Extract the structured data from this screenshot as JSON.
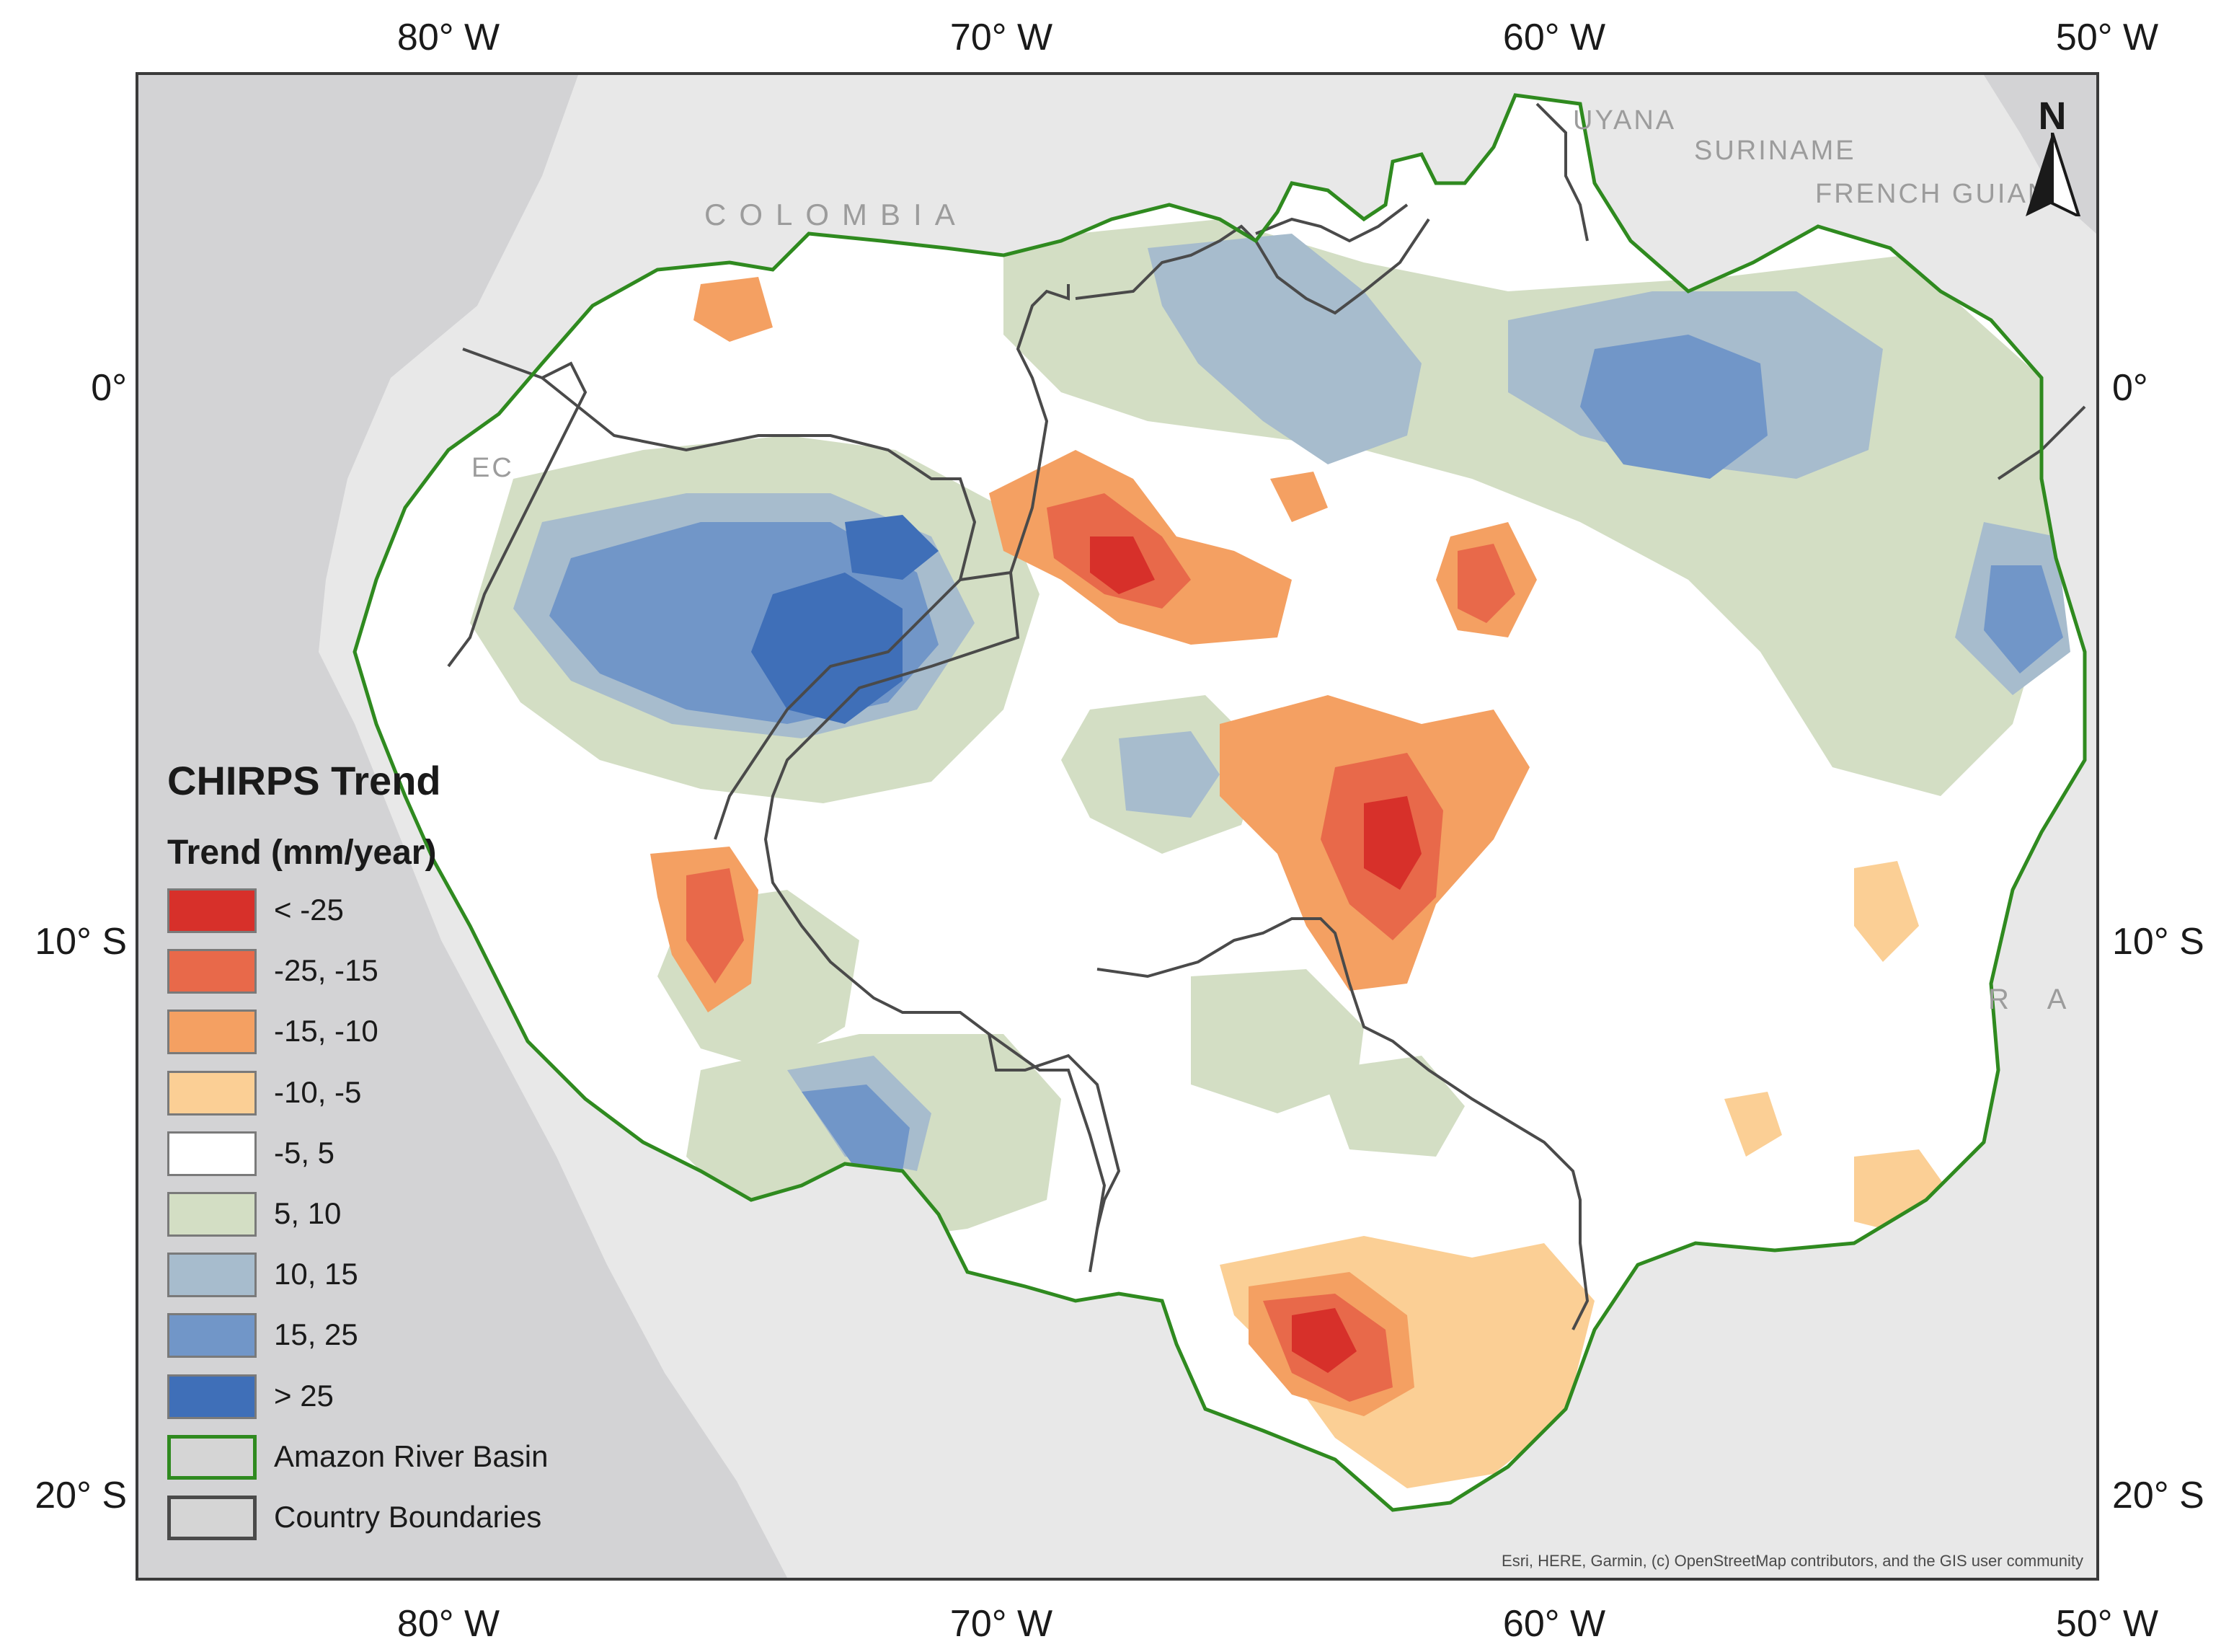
{
  "axis": {
    "longitudes": [
      "80° W",
      "70° W",
      "60° W",
      "50° W"
    ],
    "latitudes": [
      "0°",
      "10° S",
      "20° S"
    ]
  },
  "places": {
    "colombia": "COLOMBIA",
    "guyana": "UYANA",
    "suriname": "SURINAME",
    "french_guiana": "FRENCH GUIAN",
    "ecuador": "EC",
    "brazil": "R A Z"
  },
  "north_arrow": "N",
  "attribution": "Esri, HERE, Garmin, (c) OpenStreetMap contributors, and the GIS user community",
  "legend": {
    "title": "CHIRPS Trend",
    "subtitle": "Trend (mm/year)",
    "items": [
      {
        "label": "< -25",
        "color": "#d7302a",
        "kind": "fill"
      },
      {
        "label": "-25, -15",
        "color": "#e8694a",
        "kind": "fill"
      },
      {
        "label": "-15, -10",
        "color": "#f4a062",
        "kind": "fill"
      },
      {
        "label": "-10, -5",
        "color": "#fbcf95",
        "kind": "fill"
      },
      {
        "label": "-5, 5",
        "color": "#ffffff",
        "kind": "fill"
      },
      {
        "label": "5, 10",
        "color": "#d3dec4",
        "kind": "fill"
      },
      {
        "label": "10, 15",
        "color": "#a7bccd",
        "kind": "fill"
      },
      {
        "label": "15, 25",
        "color": "#7196c8",
        "kind": "fill"
      },
      {
        "label": "> 25",
        "color": "#3f6fb8",
        "kind": "fill"
      },
      {
        "label": "Amazon River Basin",
        "color": "#2f8a1f",
        "kind": "outline"
      },
      {
        "label": "Country Boundaries",
        "color": "#4a4a4a",
        "kind": "outline"
      }
    ]
  }
}
